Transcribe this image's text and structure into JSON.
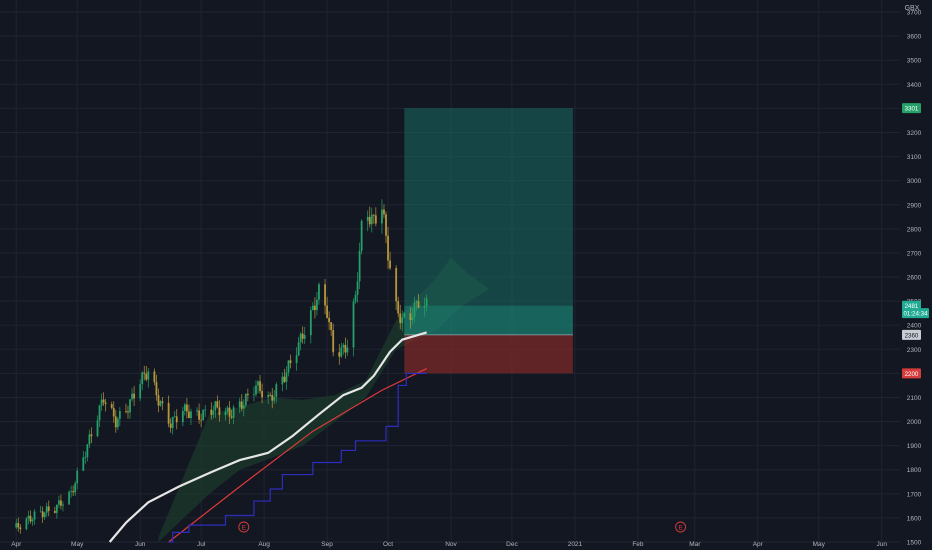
{
  "currency": "GBX",
  "chart_data": {
    "type": "candlestick",
    "currency": "GBX",
    "ylim": [
      1500,
      3750
    ],
    "y_ticks": [
      1500,
      1600,
      1700,
      1800,
      1900,
      2000,
      2100,
      2200,
      2300,
      2400,
      2500,
      2600,
      2700,
      2800,
      2900,
      3000,
      3100,
      3200,
      3300,
      3400,
      3500,
      3600,
      3700
    ],
    "x_ticks": [
      {
        "label": "Apr",
        "date": "2020-04-01"
      },
      {
        "label": "May",
        "date": "2020-05-01"
      },
      {
        "label": "Jun",
        "date": "2020-06-01"
      },
      {
        "label": "Jul",
        "date": "2020-07-01"
      },
      {
        "label": "Aug",
        "date": "2020-08-01"
      },
      {
        "label": "Sep",
        "date": "2020-09-01"
      },
      {
        "label": "Oct",
        "date": "2020-10-01"
      },
      {
        "label": "Nov",
        "date": "2020-11-01"
      },
      {
        "label": "Dec",
        "date": "2020-12-01"
      },
      {
        "label": "2021",
        "date": "2021-01-01"
      },
      {
        "label": "Feb",
        "date": "2021-02-01"
      },
      {
        "label": "Mar",
        "date": "2021-03-01"
      },
      {
        "label": "Apr",
        "date": "2021-04-01"
      },
      {
        "label": "May",
        "date": "2021-05-01"
      },
      {
        "label": "Jun",
        "date": "2021-06-01"
      }
    ],
    "close_anchors": [
      [
        "2020-04-01",
        1560
      ],
      [
        "2020-04-10",
        1610
      ],
      [
        "2020-04-20",
        1640
      ],
      [
        "2020-04-28",
        1700
      ],
      [
        "2020-05-06",
        1900
      ],
      [
        "2020-05-14",
        2100
      ],
      [
        "2020-05-20",
        2000
      ],
      [
        "2020-05-26",
        2060
      ],
      [
        "2020-06-01",
        2170
      ],
      [
        "2020-06-05",
        2210
      ],
      [
        "2020-06-10",
        2090
      ],
      [
        "2020-06-16",
        1990
      ],
      [
        "2020-06-22",
        2050
      ],
      [
        "2020-06-30",
        2020
      ],
      [
        "2020-07-08",
        2060
      ],
      [
        "2020-07-15",
        2030
      ],
      [
        "2020-07-22",
        2080
      ],
      [
        "2020-07-28",
        2150
      ],
      [
        "2020-08-04",
        2090
      ],
      [
        "2020-08-11",
        2190
      ],
      [
        "2020-08-18",
        2320
      ],
      [
        "2020-08-24",
        2440
      ],
      [
        "2020-08-28",
        2540
      ],
      [
        "2020-09-01",
        2460
      ],
      [
        "2020-09-04",
        2300
      ],
      [
        "2020-09-08",
        2290
      ],
      [
        "2020-09-11",
        2320
      ],
      [
        "2020-09-15",
        2520
      ],
      [
        "2020-09-18",
        2800
      ],
      [
        "2020-09-21",
        2860
      ],
      [
        "2020-09-24",
        2830
      ],
      [
        "2020-09-28",
        2900
      ],
      [
        "2020-09-30",
        2760
      ],
      [
        "2020-10-02",
        2640
      ],
      [
        "2020-10-05",
        2470
      ],
      [
        "2020-10-08",
        2420
      ],
      [
        "2020-10-12",
        2440
      ],
      [
        "2020-10-16",
        2500
      ],
      [
        "2020-10-20",
        2481
      ]
    ],
    "series": [
      {
        "name": "",
        "color": "#e6e6e6",
        "points": [
          [
            "2020-05-17",
            1500
          ],
          [
            "2020-05-25",
            1580
          ],
          [
            "2020-06-05",
            1665
          ],
          [
            "2020-06-20",
            1730
          ],
          [
            "2020-07-06",
            1790
          ],
          [
            "2020-07-20",
            1840
          ],
          [
            "2020-08-03",
            1870
          ],
          [
            "2020-08-15",
            1940
          ],
          [
            "2020-08-28",
            2030
          ],
          [
            "2020-09-09",
            2110
          ],
          [
            "2020-09-18",
            2140
          ],
          [
            "2020-09-24",
            2190
          ],
          [
            "2020-10-02",
            2290
          ],
          [
            "2020-10-08",
            2340
          ],
          [
            "2020-10-14",
            2355
          ],
          [
            "2020-10-20",
            2370
          ]
        ]
      },
      {
        "name": "",
        "color": "#e03a3a",
        "points": [
          [
            "2020-06-15",
            1500
          ],
          [
            "2020-07-20",
            1730
          ],
          [
            "2020-08-25",
            1960
          ],
          [
            "2020-09-28",
            2130
          ],
          [
            "2020-10-20",
            2220
          ]
        ]
      },
      {
        "name": "",
        "color": "#2d2dbe",
        "step": true,
        "points": [
          [
            "2020-06-15",
            1500
          ],
          [
            "2020-06-17",
            1540
          ],
          [
            "2020-06-25",
            1570
          ],
          [
            "2020-07-13",
            1610
          ],
          [
            "2020-07-27",
            1670
          ],
          [
            "2020-08-04",
            1720
          ],
          [
            "2020-08-10",
            1780
          ],
          [
            "2020-08-25",
            1830
          ],
          [
            "2020-09-08",
            1880
          ],
          [
            "2020-09-15",
            1920
          ],
          [
            "2020-09-30",
            1980
          ],
          [
            "2020-10-06",
            2150
          ],
          [
            "2020-10-10",
            2200
          ],
          [
            "2020-10-20",
            2200
          ]
        ]
      }
    ],
    "cloud": {
      "upper": [
        [
          "2020-06-10",
          1520
        ],
        [
          "2020-07-05",
          2030
        ],
        [
          "2020-07-20",
          2060
        ],
        [
          "2020-08-05",
          2100
        ],
        [
          "2020-08-20",
          2090
        ],
        [
          "2020-09-05",
          2110
        ],
        [
          "2020-09-20",
          2170
        ],
        [
          "2020-10-05",
          2420
        ],
        [
          "2020-10-25",
          2600
        ],
        [
          "2020-11-01",
          2680
        ],
        [
          "2020-11-10",
          2610
        ],
        [
          "2020-11-20",
          2550
        ]
      ],
      "lower": [
        [
          "2020-06-10",
          1500
        ],
        [
          "2020-07-05",
          1700
        ],
        [
          "2020-07-20",
          1800
        ],
        [
          "2020-08-05",
          1850
        ],
        [
          "2020-08-20",
          1900
        ],
        [
          "2020-09-05",
          2000
        ],
        [
          "2020-09-20",
          2100
        ],
        [
          "2020-10-05",
          2300
        ],
        [
          "2020-10-25",
          2380
        ],
        [
          "2020-11-01",
          2440
        ],
        [
          "2020-11-10",
          2500
        ],
        [
          "2020-11-20",
          2550
        ]
      ]
    },
    "position": {
      "start": "2020-10-09",
      "end": "2020-12-31",
      "target": 3301,
      "entry": 2360,
      "stop": 2200,
      "current": 2481
    },
    "earnings_markers": [
      {
        "label": "E",
        "date": "2020-07-22"
      },
      {
        "label": "E",
        "date": "2021-02-22"
      }
    ],
    "price_labels": [
      {
        "text": "3301",
        "value": 3301,
        "color": "#26a069"
      },
      {
        "text": "2481",
        "value": 2481,
        "color": "#22ab94"
      },
      {
        "text": "01:24:34",
        "value": 2450,
        "color": "#22ab94"
      },
      {
        "text": "2360",
        "value": 2360,
        "color": "#c9ccd3"
      },
      {
        "text": "2200",
        "value": 2200,
        "color": "#d43c3c"
      }
    ],
    "colors": {
      "background": "#131722",
      "grid": "#1f2431",
      "axis_text": "#b2b5be",
      "up": "#26a069",
      "down": "#b8973a",
      "cloud": "#1c3a2c",
      "target_zone": "#1a6b63",
      "stop_zone": "#8a2a2a"
    }
  }
}
